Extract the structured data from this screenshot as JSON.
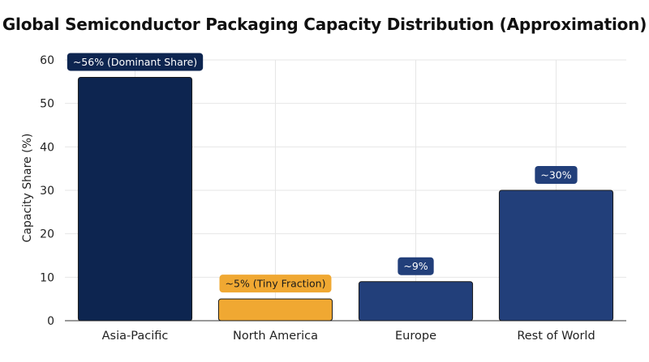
{
  "chart_data": {
    "type": "bar",
    "title": "Global Semiconductor Packaging Capacity Distribution (Approximation)",
    "xlabel": "",
    "ylabel": "Capacity Share (%)",
    "ylim": [
      0,
      60
    ],
    "yticks": [
      0,
      10,
      20,
      30,
      40,
      50,
      60
    ],
    "grid": true,
    "categories": [
      "Asia-Pacific",
      "North America",
      "Europe",
      "Rest of World"
    ],
    "values": [
      56,
      5,
      9,
      30
    ],
    "data_labels": [
      "~56% (Dominant Share)",
      "~5% (Tiny Fraction)",
      "~9%",
      "~30%"
    ],
    "bar_colors": [
      "#0d2550",
      "#f0a832",
      "#223f7a",
      "#223f7a"
    ],
    "label_bg_colors": [
      "#0d2550",
      "#f0a832",
      "#223f7a",
      "#223f7a"
    ],
    "label_text_colors": [
      "#ffffff",
      "#1a1a1a",
      "#ffffff",
      "#ffffff"
    ]
  }
}
